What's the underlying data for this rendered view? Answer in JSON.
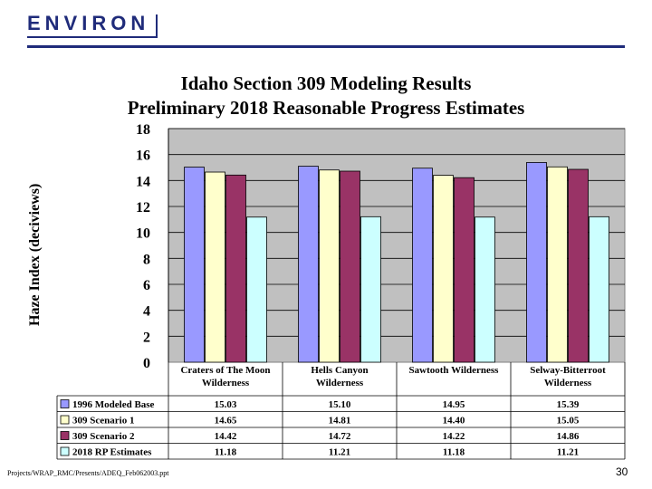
{
  "header": {
    "logo_text": "ENVIRON",
    "title_line1": "Idaho Section 309 Modeling Results",
    "title_line2": "Preliminary 2018 Reasonable Progress Estimates"
  },
  "footer": {
    "path": "Projects/WRAP_RMC/Presents/ADEQ_Feb062003.ppt",
    "page_number": "30"
  },
  "colors": {
    "plot_bg": "#c0c0c0",
    "s1": "#9999ff",
    "s2": "#ffffcc",
    "s3": "#993366",
    "s4": "#ccffff",
    "logo": "#1f2b7a"
  },
  "chart_data": {
    "type": "bar",
    "title": "Idaho Section 309 Modeling Results Preliminary 2018 Reasonable Progress Estimates",
    "ylabel": "Haze Index (deciviews)",
    "xlabel": "",
    "ylim": [
      0,
      18
    ],
    "yticks": [
      "0",
      "2",
      "4",
      "6",
      "8",
      "10",
      "12",
      "14",
      "16",
      "18"
    ],
    "grid": "horizontal",
    "categories": [
      [
        "Craters of The Moon",
        "Wilderness"
      ],
      [
        "Hells Canyon",
        "Wilderness"
      ],
      [
        "Sawtooth Wilderness"
      ],
      [
        "Selway-Bitterroot",
        "Wilderness"
      ]
    ],
    "series": [
      {
        "name": "1996 Modeled Base",
        "values": [
          15.03,
          15.1,
          14.95,
          15.39
        ],
        "labels": [
          "15.03",
          "15.10",
          "14.95",
          "15.39"
        ]
      },
      {
        "name": "309 Scenario 1",
        "values": [
          14.65,
          14.81,
          14.4,
          15.05
        ],
        "labels": [
          "14.65",
          "14.81",
          "14.40",
          "15.05"
        ]
      },
      {
        "name": "309 Scenario 2",
        "values": [
          14.42,
          14.72,
          14.22,
          14.86
        ],
        "labels": [
          "14.42",
          "14.72",
          "14.22",
          "14.86"
        ]
      },
      {
        "name": "2018 RP Estimates",
        "values": [
          11.18,
          11.21,
          11.18,
          11.21
        ],
        "labels": [
          "11.18",
          "11.21",
          "11.18",
          "11.21"
        ]
      }
    ]
  }
}
